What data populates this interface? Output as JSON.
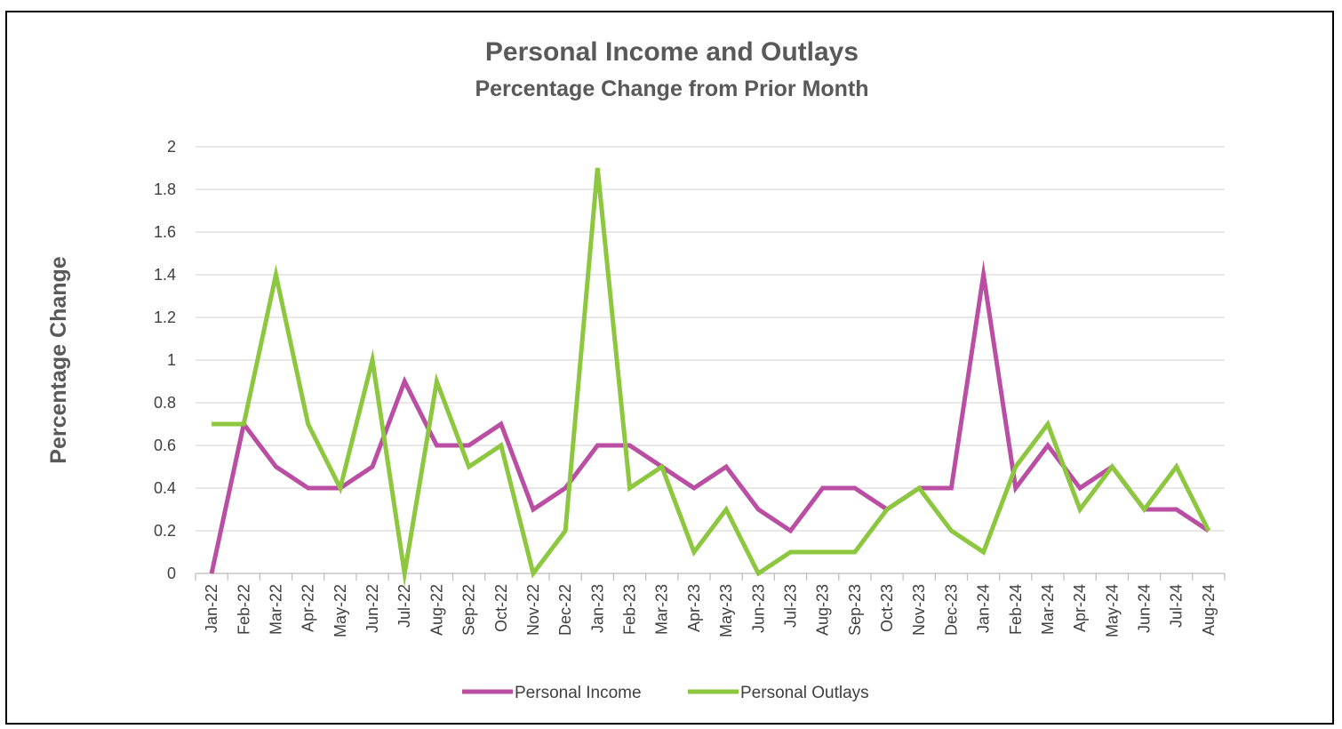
{
  "chart_data": {
    "type": "line",
    "title": "Personal Income and Outlays",
    "subtitle": "Percentage Change from Prior Month",
    "ylabel": "Percentage Change",
    "xlabel": "",
    "ylim": [
      0,
      2
    ],
    "yticks": [
      "0",
      "0.2",
      "0.4",
      "0.6",
      "0.8",
      "1",
      "1.2",
      "1.4",
      "1.6",
      "1.8",
      "2"
    ],
    "grid": true,
    "legend_position": "bottom",
    "categories": [
      "Jan-22",
      "Feb-22",
      "Mar-22",
      "Apr-22",
      "May-22",
      "Jun-22",
      "Jul-22",
      "Aug-22",
      "Sep-22",
      "Oct-22",
      "Nov-22",
      "Dec-22",
      "Jan-23",
      "Feb-23",
      "Mar-23",
      "Apr-23",
      "May-23",
      "Jun-23",
      "Jul-23",
      "Aug-23",
      "Sep-23",
      "Oct-23",
      "Nov-23",
      "Dec-23",
      "Jan-24",
      "Feb-24",
      "Mar-24",
      "Apr-24",
      "May-24",
      "Jun-24",
      "Jul-24",
      "Aug-24"
    ],
    "series": [
      {
        "name": "Personal Income",
        "color": "#b94ea3",
        "values": [
          0,
          0.7,
          0.5,
          0.4,
          0.4,
          0.5,
          0.9,
          0.6,
          0.6,
          0.7,
          0.3,
          0.4,
          0.6,
          0.6,
          0.5,
          0.4,
          0.5,
          0.3,
          0.2,
          0.4,
          0.4,
          0.3,
          0.4,
          0.4,
          1.4,
          0.4,
          0.6,
          0.4,
          0.5,
          0.3,
          0.3,
          0.2
        ]
      },
      {
        "name": "Personal Outlays",
        "color": "#8dc63f",
        "values": [
          0.7,
          0.7,
          1.4,
          0.7,
          0.4,
          1.0,
          0,
          0.9,
          0.5,
          0.6,
          0,
          0.2,
          1.9,
          0.4,
          0.5,
          0.1,
          0.3,
          0,
          0.1,
          0.1,
          0.1,
          0.3,
          0.4,
          0.2,
          0.1,
          0.5,
          0.7,
          0.3,
          0.5,
          0.3,
          0.5,
          0.2
        ]
      }
    ]
  }
}
